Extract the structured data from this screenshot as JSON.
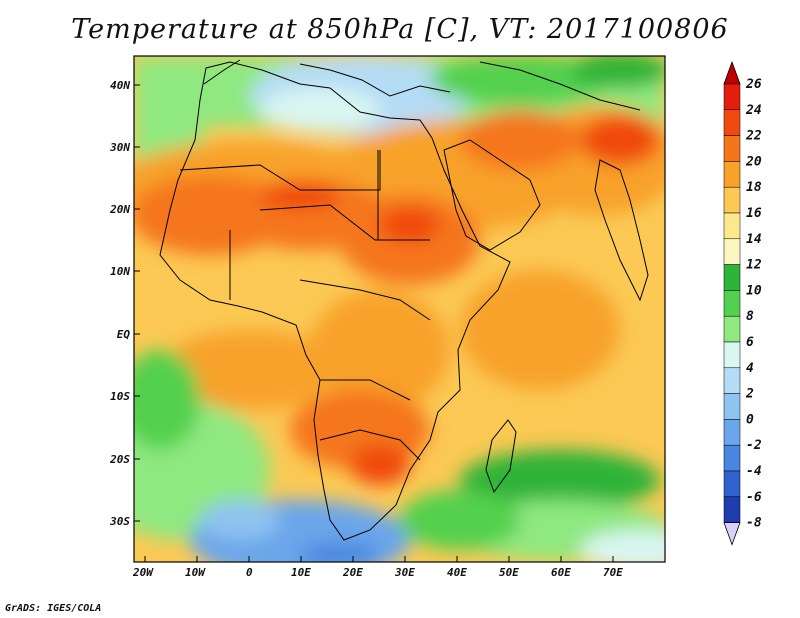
{
  "title": "Temperature at 850hPa [C], VT: 2017100806",
  "credit": "GrADS: IGES/COLA",
  "axes": {
    "lat_labels": [
      "40N",
      "30N",
      "20N",
      "10N",
      "EQ",
      "10S",
      "20S",
      "30S"
    ],
    "lon_labels": [
      "20W",
      "10W",
      "0",
      "10E",
      "20E",
      "30E",
      "40E",
      "50E",
      "60E",
      "70E"
    ]
  },
  "colorbar": {
    "labels": [
      "26",
      "24",
      "22",
      "20",
      "18",
      "16",
      "14",
      "12",
      "10",
      "8",
      "6",
      "4",
      "2",
      "0",
      "-2",
      "-4",
      "-6",
      "-8"
    ],
    "colors": [
      "#e21f0c",
      "#f04a10",
      "#f5761a",
      "#f8a22b",
      "#fbc954",
      "#fde98c",
      "#fdf6c0",
      "#2db337",
      "#52d04e",
      "#8fe880",
      "#d9f6f2",
      "#b5dcf5",
      "#8fc3f0",
      "#6aa6ea",
      "#4886e0",
      "#2f62cc",
      "#1e3eb0",
      "#0f1a82"
    ],
    "over_color": "#c00000",
    "under_color": "#d8d0f8"
  }
}
